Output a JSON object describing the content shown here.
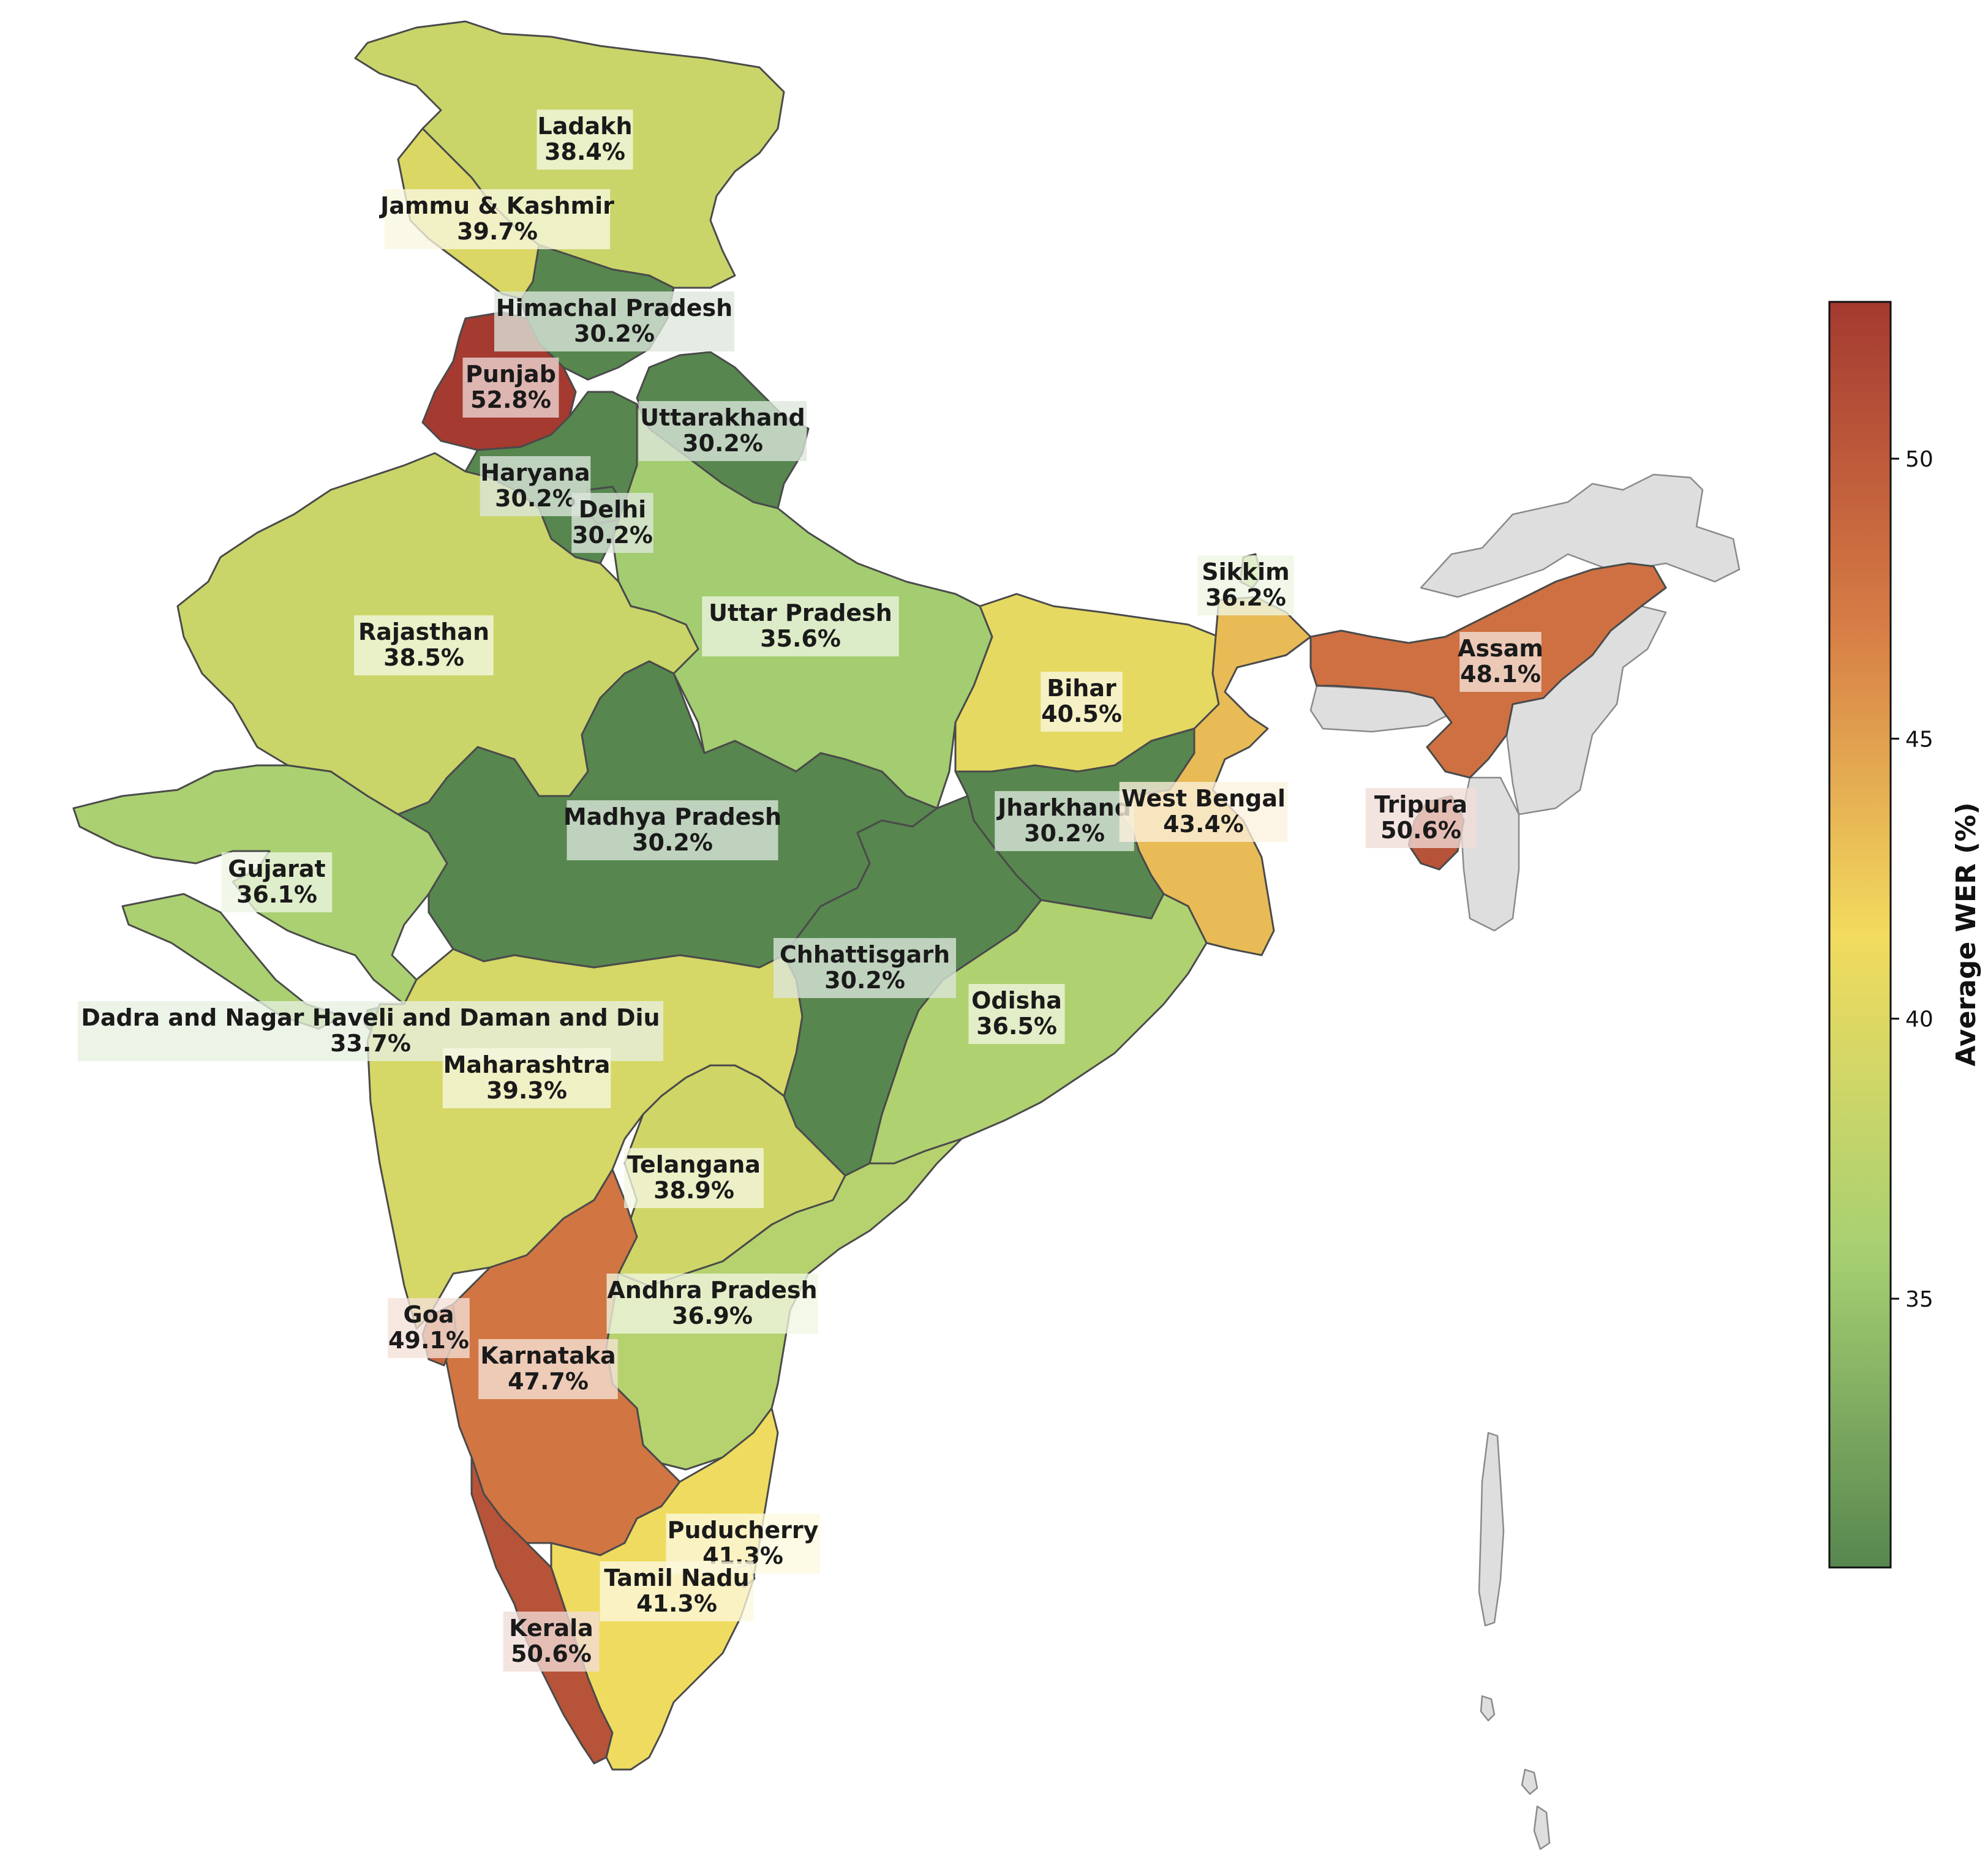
{
  "map": {
    "regions": [
      {
        "name": "Ladakh",
        "value": 38.4,
        "label": "Ladakh",
        "value_label": "38.4%"
      },
      {
        "name": "Jammu & Kashmir",
        "value": 39.7,
        "label": "Jammu & Kashmir",
        "value_label": "39.7%"
      },
      {
        "name": "Himachal Pradesh",
        "value": 30.2,
        "label": "Himachal Pradesh",
        "value_label": "30.2%"
      },
      {
        "name": "Punjab",
        "value": 52.8,
        "label": "Punjab",
        "value_label": "52.8%"
      },
      {
        "name": "Uttarakhand",
        "value": 30.2,
        "label": "Uttarakhand",
        "value_label": "30.2%"
      },
      {
        "name": "Haryana",
        "value": 30.2,
        "label": "Haryana",
        "value_label": "30.2%"
      },
      {
        "name": "Delhi",
        "value": 30.2,
        "label": "Delhi",
        "value_label": "30.2%"
      },
      {
        "name": "Rajasthan",
        "value": 38.5,
        "label": "Rajasthan",
        "value_label": "38.5%"
      },
      {
        "name": "Uttar Pradesh",
        "value": 35.6,
        "label": "Uttar Pradesh",
        "value_label": "35.6%"
      },
      {
        "name": "Sikkim",
        "value": 36.2,
        "label": "Sikkim",
        "value_label": "36.2%"
      },
      {
        "name": "Assam",
        "value": 48.1,
        "label": "Assam",
        "value_label": "48.1%"
      },
      {
        "name": "Bihar",
        "value": 40.5,
        "label": "Bihar",
        "value_label": "40.5%"
      },
      {
        "name": "Tripura",
        "value": 50.6,
        "label": "Tripura",
        "value_label": "50.6%"
      },
      {
        "name": "Jharkhand",
        "value": 30.2,
        "label": "Jharkhand",
        "value_label": "30.2%"
      },
      {
        "name": "West Bengal",
        "value": 43.4,
        "label": "West Bengal",
        "value_label": "43.4%"
      },
      {
        "name": "Madhya Pradesh",
        "value": 30.2,
        "label": "Madhya Pradesh",
        "value_label": "30.2%"
      },
      {
        "name": "Gujarat",
        "value": 36.1,
        "label": "Gujarat",
        "value_label": "36.1%"
      },
      {
        "name": "Chhattisgarh",
        "value": 30.2,
        "label": "Chhattisgarh",
        "value_label": "30.2%"
      },
      {
        "name": "Odisha",
        "value": 36.5,
        "label": "Odisha",
        "value_label": "36.5%"
      },
      {
        "name": "Dadra and Nagar Haveli and Daman and Diu",
        "value": 33.7,
        "label": "Dadra and Nagar Haveli and Daman and Diu",
        "value_label": "33.7%"
      },
      {
        "name": "Maharashtra",
        "value": 39.3,
        "label": "Maharashtra",
        "value_label": "39.3%"
      },
      {
        "name": "Telangana",
        "value": 38.9,
        "label": "Telangana",
        "value_label": "38.9%"
      },
      {
        "name": "Andhra Pradesh",
        "value": 36.9,
        "label": "Andhra Pradesh",
        "value_label": "36.9%"
      },
      {
        "name": "Goa",
        "value": 49.1,
        "label": "Goa",
        "value_label": "49.1%"
      },
      {
        "name": "Karnataka",
        "value": 47.7,
        "label": "Karnataka",
        "value_label": "47.7%"
      },
      {
        "name": "Puducherry",
        "value": 41.3,
        "label": "Puducherry",
        "value_label": "41.3%"
      },
      {
        "name": "Tamil Nadu",
        "value": 41.3,
        "label": "Tamil Nadu",
        "value_label": "41.3%"
      },
      {
        "name": "Kerala",
        "value": 50.6,
        "label": "Kerala",
        "value_label": "50.6%"
      }
    ],
    "no_data_color": "#dedede",
    "border_color": "#4a4a4a"
  },
  "colorbar": {
    "title": "Average WER (%)",
    "range": [
      30.2,
      52.8
    ],
    "ticks": [
      35,
      40,
      45,
      50
    ],
    "tick_labels": [
      "35",
      "40",
      "45",
      "50"
    ],
    "colormap": [
      {
        "at": 0.0,
        "color": "#57874f"
      },
      {
        "at": 0.25,
        "color": "#a7d072"
      },
      {
        "at": 0.5,
        "color": "#f2db5e"
      },
      {
        "at": 0.75,
        "color": "#d67b45"
      },
      {
        "at": 1.0,
        "color": "#a43a30"
      }
    ]
  }
}
